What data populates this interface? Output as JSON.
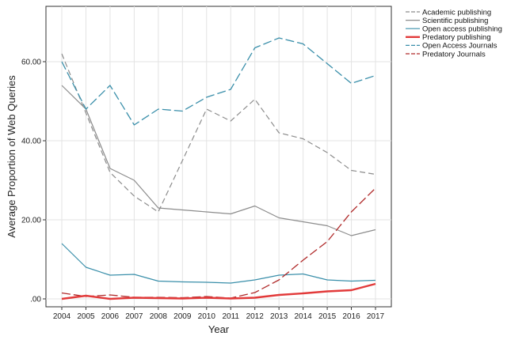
{
  "chart_data": {
    "type": "line",
    "title": "",
    "xlabel": "Year",
    "ylabel": "Average Proportion of Web Queries",
    "x": [
      "2004",
      "2005",
      "2006",
      "2007",
      "2008",
      "2009",
      "2010",
      "2011",
      "2012",
      "2013",
      "2014",
      "2015",
      "2016",
      "2017"
    ],
    "ylim": [
      -2,
      74
    ],
    "yticks": [
      0,
      20,
      40,
      60
    ],
    "ytick_labels": [
      ".00",
      "20.00",
      "40.00",
      "60.00"
    ],
    "grid": true,
    "legend_position": "outside-right",
    "series": [
      {
        "name": "Academic publishing",
        "color": "#8c8c8c",
        "dash": "dashed",
        "width": 1.2,
        "values": [
          62.0,
          47.0,
          32.0,
          26.0,
          22.0,
          35.0,
          48.0,
          45.0,
          50.5,
          42.0,
          40.5,
          37.0,
          32.5,
          31.5
        ]
      },
      {
        "name": "Scientific publishing",
        "color": "#8c8c8c",
        "dash": "solid",
        "width": 1.2,
        "values": [
          54.0,
          48.0,
          33.0,
          30.0,
          23.0,
          22.5,
          22.0,
          21.5,
          23.5,
          20.5,
          19.5,
          18.5,
          16.0,
          17.5
        ]
      },
      {
        "name": "Open access publishing",
        "color": "#3a8faa",
        "dash": "solid",
        "width": 1.2,
        "values": [
          14.0,
          8.0,
          6.0,
          6.2,
          4.5,
          4.3,
          4.2,
          4.0,
          4.8,
          6.0,
          6.3,
          4.8,
          4.5,
          4.7
        ]
      },
      {
        "name": "Predatory publishing",
        "color": "#e23a3a",
        "dash": "solid",
        "width": 2.4,
        "values": [
          0.0,
          0.8,
          0.0,
          0.3,
          0.2,
          0.1,
          0.3,
          0.1,
          0.3,
          1.0,
          1.4,
          1.9,
          2.2,
          3.8
        ]
      },
      {
        "name": "Open Access Journals",
        "color": "#3a8faa",
        "dash": "longdash",
        "width": 1.3,
        "values": [
          60.0,
          48.0,
          54.0,
          44.0,
          48.0,
          47.5,
          51.0,
          53.0,
          63.5,
          66.0,
          64.5,
          59.5,
          54.5,
          56.5
        ]
      },
      {
        "name": "Predatory Journals",
        "color": "#b02a2a",
        "dash": "longdash",
        "width": 1.3,
        "values": [
          1.5,
          0.6,
          1.0,
          0.4,
          0.4,
          0.3,
          0.6,
          0.2,
          1.6,
          4.8,
          9.8,
          14.5,
          22.0,
          28.0
        ]
      }
    ]
  }
}
